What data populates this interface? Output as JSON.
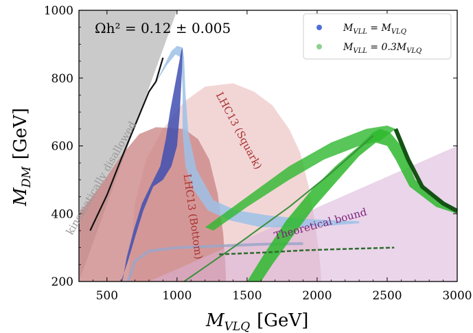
{
  "chart_data": {
    "type": "scatter",
    "xlabel_main": "M",
    "xlabel_sub": "VLQ",
    "xlabel_unit": "[GeV]",
    "ylabel_main": "M",
    "ylabel_sub": "DM",
    "ylabel_unit": "[GeV]",
    "xlim": [
      300,
      3000
    ],
    "ylim": [
      200,
      1000
    ],
    "x_ticks": [
      500,
      1000,
      1500,
      2000,
      2500,
      3000
    ],
    "y_ticks": [
      200,
      400,
      600,
      800,
      1000
    ],
    "annotation": "Ωh² = 0.12 ± 0.005",
    "legend": {
      "placement": "top-right",
      "entries": [
        {
          "label": "M_VLL = M_VLQ",
          "label_main": "M",
          "label_sub1": "VLL",
          "label_mid": " = M",
          "label_sub2": "VLQ",
          "label_tail": "",
          "color": "#4f6fd8"
        },
        {
          "label": "M_VLL = 0.3M_VLQ",
          "label_main": "M",
          "label_sub1": "VLL",
          "label_mid": " = 0.3M",
          "label_sub2": "VLQ",
          "label_tail": "",
          "color": "#8fd08f"
        }
      ]
    },
    "regions": [
      {
        "name": "kinematically disallowed",
        "color": "#b8b8b8",
        "points": [
          [
            300,
            200
          ],
          [
            300,
            1000
          ],
          [
            1000,
            1000
          ]
        ]
      },
      {
        "name": "LHC13 (Squark)",
        "color": "#e8b4b4",
        "points": [
          [
            650,
            200
          ],
          [
            700,
            430
          ],
          [
            780,
            560
          ],
          [
            900,
            650
          ],
          [
            1050,
            730
          ],
          [
            1200,
            775
          ],
          [
            1400,
            785
          ],
          [
            1550,
            760
          ],
          [
            1680,
            720
          ],
          [
            1800,
            650
          ],
          [
            1880,
            580
          ],
          [
            1940,
            480
          ],
          [
            1990,
            360
          ],
          [
            2020,
            260
          ],
          [
            2030,
            200
          ]
        ]
      },
      {
        "name": "LHC13 (Bottom)",
        "color": "#c98282",
        "points": [
          [
            300,
            200
          ],
          [
            300,
            400
          ],
          [
            450,
            480
          ],
          [
            600,
            570
          ],
          [
            730,
            635
          ],
          [
            850,
            655
          ],
          [
            1050,
            650
          ],
          [
            1150,
            620
          ],
          [
            1230,
            560
          ],
          [
            1290,
            460
          ],
          [
            1330,
            340
          ],
          [
            1345,
            250
          ],
          [
            1350,
            200
          ]
        ]
      },
      {
        "name": "Theoretical bound",
        "color": "#d9b3d9",
        "points": [
          [
            800,
            200
          ],
          [
            3000,
            600
          ],
          [
            3000,
            200
          ]
        ]
      }
    ],
    "region_labels": [
      {
        "text": "kinematically disallowed",
        "color": "#999999"
      },
      {
        "text": "LHC13 (Squark)",
        "color": "#a83232"
      },
      {
        "text": "LHC13 (Bottom)",
        "color": "#a83232"
      },
      {
        "text": "Theoretical bound",
        "color": "#7a1f7a"
      }
    ],
    "series": [
      {
        "name": "M_VLL = M_VLQ",
        "color": "#3f4fb0",
        "light_color": "#9dc1e6",
        "dark_points": [
          [
            380,
            350
          ],
          [
            500,
            455
          ],
          [
            600,
            560
          ],
          [
            700,
            660
          ],
          [
            800,
            760
          ],
          [
            850,
            790
          ],
          [
            900,
            860
          ]
        ],
        "band_points": [
          [
            600,
            200
          ],
          [
            650,
            260
          ],
          [
            700,
            330
          ],
          [
            760,
            410
          ],
          [
            830,
            480
          ],
          [
            900,
            500
          ],
          [
            960,
            540
          ],
          [
            1000,
            600
          ],
          [
            1020,
            700
          ],
          [
            1035,
            820
          ],
          [
            1040,
            890
          ],
          [
            1030,
            880
          ],
          [
            990,
            790
          ],
          [
            950,
            700
          ],
          [
            920,
            620
          ],
          [
            880,
            540
          ],
          [
            820,
            490
          ],
          [
            750,
            430
          ],
          [
            690,
            350
          ],
          [
            640,
            270
          ],
          [
            610,
            200
          ]
        ],
        "light_band": [
          [
            830,
            770
          ],
          [
            900,
            830
          ],
          [
            960,
            880
          ],
          [
            1000,
            895
          ],
          [
            1040,
            890
          ],
          [
            1050,
            860
          ],
          [
            1060,
            760
          ],
          [
            1080,
            640
          ],
          [
            1140,
            530
          ],
          [
            1260,
            440
          ],
          [
            1420,
            410
          ],
          [
            1650,
            395
          ],
          [
            1900,
            385
          ],
          [
            2150,
            380
          ],
          [
            2300,
            378
          ],
          [
            2300,
            372
          ],
          [
            2100,
            365
          ],
          [
            1850,
            360
          ],
          [
            1600,
            360
          ],
          [
            1380,
            380
          ],
          [
            1220,
            410
          ],
          [
            1120,
            470
          ],
          [
            1060,
            540
          ],
          [
            1040,
            640
          ],
          [
            1040,
            760
          ],
          [
            1030,
            860
          ],
          [
            990,
            870
          ],
          [
            930,
            840
          ],
          [
            870,
            800
          ]
        ],
        "low_branch": [
          [
            650,
            200
          ],
          [
            700,
            260
          ],
          [
            800,
            290
          ],
          [
            1000,
            300
          ],
          [
            1300,
            305
          ],
          [
            1600,
            310
          ],
          [
            1900,
            312
          ]
        ]
      },
      {
        "name": "M_VLL = 0.3M_VLQ",
        "color": "#2eb82e",
        "light_color": "#8fd08f",
        "thin_points": [
          [
            1050,
            200
          ],
          [
            1400,
            300
          ],
          [
            1800,
            420
          ],
          [
            2100,
            520
          ],
          [
            2400,
            630
          ]
        ],
        "band_points": [
          [
            1500,
            200
          ],
          [
            1620,
            280
          ],
          [
            1780,
            380
          ],
          [
            1960,
            470
          ],
          [
            2130,
            540
          ],
          [
            2300,
            600
          ],
          [
            2400,
            640
          ],
          [
            2450,
            650
          ],
          [
            2520,
            640
          ],
          [
            2600,
            600
          ],
          [
            2700,
            500
          ],
          [
            2900,
            430
          ],
          [
            3000,
            410
          ],
          [
            3000,
            400
          ],
          [
            2850,
            420
          ],
          [
            2660,
            480
          ],
          [
            2560,
            560
          ],
          [
            2500,
            600
          ],
          [
            2420,
            610
          ],
          [
            2300,
            570
          ],
          [
            2150,
            500
          ],
          [
            1980,
            420
          ],
          [
            1820,
            330
          ],
          [
            1680,
            250
          ],
          [
            1600,
            200
          ]
        ],
        "upper_band": [
          [
            1200,
            360
          ],
          [
            1500,
            450
          ],
          [
            1800,
            540
          ],
          [
            2100,
            610
          ],
          [
            2350,
            650
          ],
          [
            2500,
            660
          ],
          [
            2560,
            650
          ],
          [
            2450,
            615
          ],
          [
            2300,
            600
          ],
          [
            2050,
            560
          ],
          [
            1800,
            500
          ],
          [
            1500,
            420
          ],
          [
            1260,
            350
          ]
        ],
        "low_branch": [
          [
            1300,
            280
          ],
          [
            1600,
            285
          ],
          [
            1900,
            292
          ],
          [
            2200,
            296
          ],
          [
            2550,
            300
          ]
        ]
      }
    ]
  }
}
